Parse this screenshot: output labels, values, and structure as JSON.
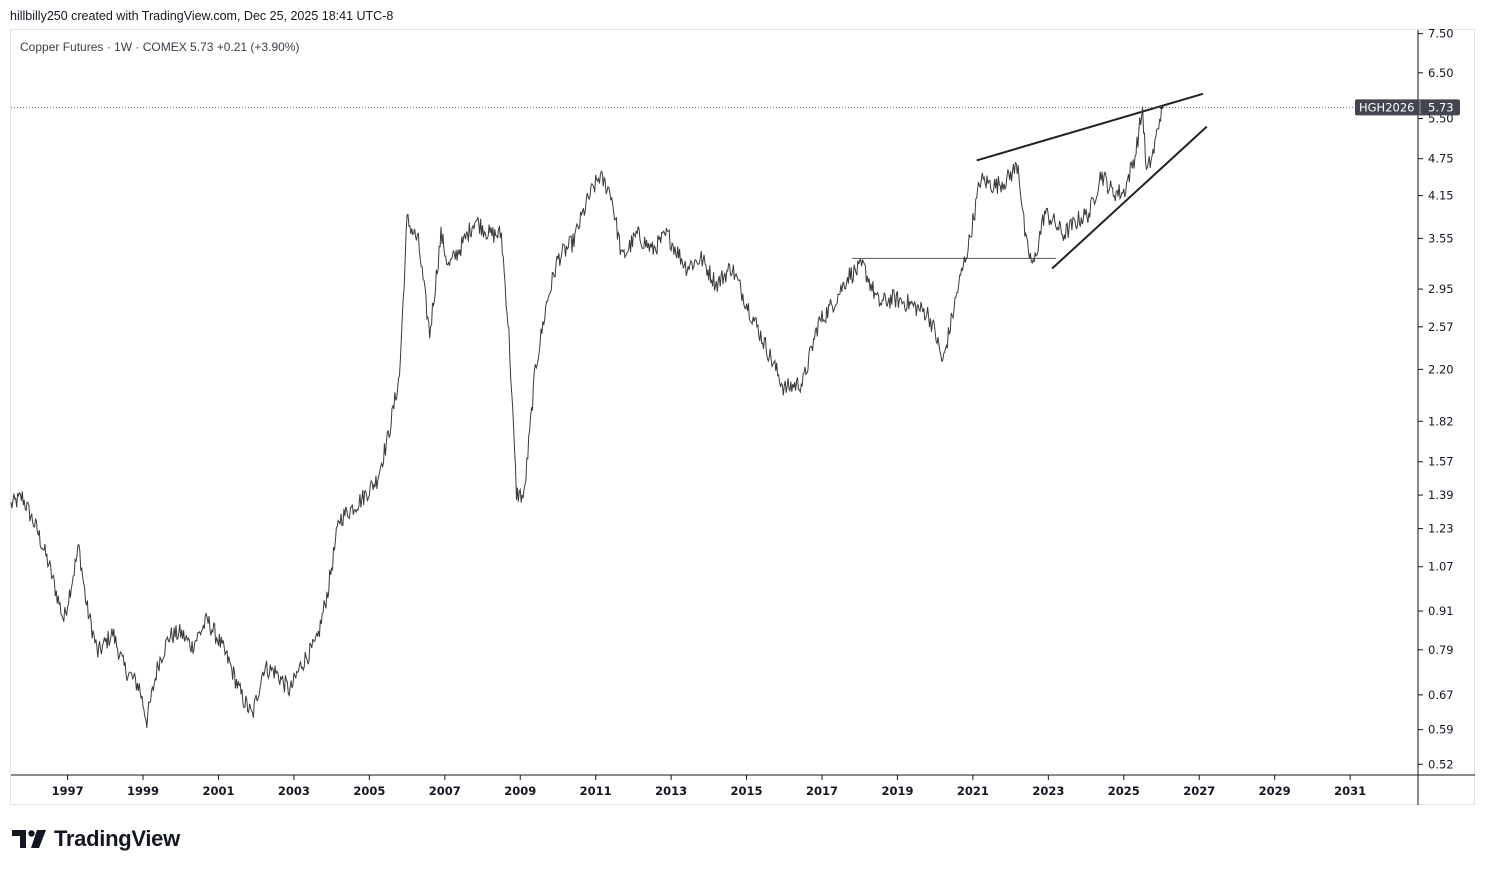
{
  "header": {
    "credit": "hillbilly250 created with TradingView.com, Dec 25, 2025 18:41 UTC-8"
  },
  "legend": {
    "text": "Copper Futures · 1W · COMEX  5.73  +0.21 (+3.90%)"
  },
  "brand": {
    "name": "TradingView",
    "color": "#131722"
  },
  "colors": {
    "price_line": "#3a3a3a",
    "trendline": "#222222",
    "badge_bg": "#434651",
    "grid": "#e0e3eb",
    "dotted_line": "#666666"
  },
  "chart_data": {
    "type": "line",
    "title": "",
    "symbol": "Copper Futures",
    "timeframe": "1W",
    "exchange": "COMEX",
    "last_price": 5.73,
    "change": 0.21,
    "change_pct": 3.9,
    "y_scale": "log",
    "ylim": [
      0.5,
      7.6
    ],
    "xlim": [
      1995.5,
      2032.8
    ],
    "x_ticks": [
      "1997",
      "1999",
      "2001",
      "2003",
      "2005",
      "2007",
      "2009",
      "2011",
      "2013",
      "2015",
      "2017",
      "2019",
      "2021",
      "2023",
      "2025",
      "2027",
      "2029",
      "2031"
    ],
    "y_ticks": [
      "7.50",
      "6.50",
      "5.50",
      "4.75",
      "4.15",
      "3.55",
      "2.95",
      "2.57",
      "2.20",
      "1.82",
      "1.57",
      "1.39",
      "1.23",
      "1.07",
      "0.91",
      "0.79",
      "0.67",
      "0.59",
      "0.52"
    ],
    "price_badge": {
      "label": "HGH2026",
      "value": "5.73"
    },
    "series": [
      {
        "x": [
          1995.5,
          1995.8,
          1996.2,
          1996.5,
          1996.9,
          1997.3,
          1997.5,
          1997.8,
          1998.2,
          1998.5,
          1998.9,
          1999.1,
          1999.4,
          1999.7,
          2000.0,
          2000.3,
          2000.7,
          2001.0,
          2001.3,
          2001.6,
          2001.9,
          2002.2,
          2002.5,
          2002.9,
          2003.2,
          2003.6,
          2003.9,
          2004.2,
          2004.5,
          2004.8,
          2005.2,
          2005.5,
          2005.8,
          2006.0,
          2006.3,
          2006.6,
          2006.9,
          2007.1,
          2007.5,
          2007.8,
          2008.2,
          2008.5,
          2008.7,
          2008.9,
          2009.1,
          2009.4,
          2009.7,
          2010.0,
          2010.4,
          2010.8,
          2011.1,
          2011.4,
          2011.7,
          2012.1,
          2012.5,
          2012.9,
          2013.4,
          2013.8,
          2014.2,
          2014.6,
          2015.0,
          2015.5,
          2016.0,
          2016.5,
          2016.9,
          2017.3,
          2017.7,
          2018.1,
          2018.5,
          2018.9,
          2019.3,
          2019.8,
          2020.0,
          2020.2,
          2020.6,
          2020.9,
          2021.2,
          2021.6,
          2021.9,
          2022.2,
          2022.4,
          2022.6,
          2022.9,
          2023.1,
          2023.4,
          2023.8,
          2024.1,
          2024.4,
          2024.7,
          2025.0,
          2025.3,
          2025.5,
          2025.6,
          2025.8,
          2026.0
        ],
        "values": [
          1.34,
          1.38,
          1.22,
          1.08,
          0.88,
          1.15,
          0.93,
          0.78,
          0.84,
          0.74,
          0.69,
          0.61,
          0.75,
          0.83,
          0.84,
          0.8,
          0.88,
          0.82,
          0.75,
          0.67,
          0.62,
          0.74,
          0.73,
          0.68,
          0.75,
          0.81,
          0.98,
          1.27,
          1.32,
          1.37,
          1.47,
          1.72,
          2.15,
          3.8,
          3.5,
          2.5,
          3.6,
          3.2,
          3.5,
          3.8,
          3.6,
          3.6,
          2.5,
          1.4,
          1.38,
          2.2,
          2.8,
          3.3,
          3.5,
          4.1,
          4.45,
          4.2,
          3.3,
          3.6,
          3.4,
          3.6,
          3.2,
          3.3,
          3.0,
          3.2,
          2.8,
          2.4,
          2.05,
          2.1,
          2.6,
          2.8,
          3.1,
          3.2,
          2.8,
          2.85,
          2.8,
          2.7,
          2.52,
          2.25,
          2.95,
          3.5,
          4.4,
          4.3,
          4.4,
          4.65,
          3.5,
          3.2,
          3.9,
          3.8,
          3.6,
          3.8,
          3.9,
          4.5,
          4.2,
          4.2,
          4.8,
          5.7,
          4.5,
          4.9,
          5.73
        ]
      }
    ],
    "drawings": [
      {
        "type": "trendline",
        "from": [
          2021.1,
          4.72
        ],
        "to": [
          2027.1,
          6.02
        ]
      },
      {
        "type": "trendline",
        "from": [
          2023.1,
          3.18
        ],
        "to": [
          2027.2,
          5.34
        ]
      },
      {
        "type": "horizontal",
        "from": [
          2017.8,
          3.3
        ],
        "to": [
          2023.2,
          3.3
        ]
      },
      {
        "type": "price_line",
        "value": 5.73
      }
    ]
  }
}
